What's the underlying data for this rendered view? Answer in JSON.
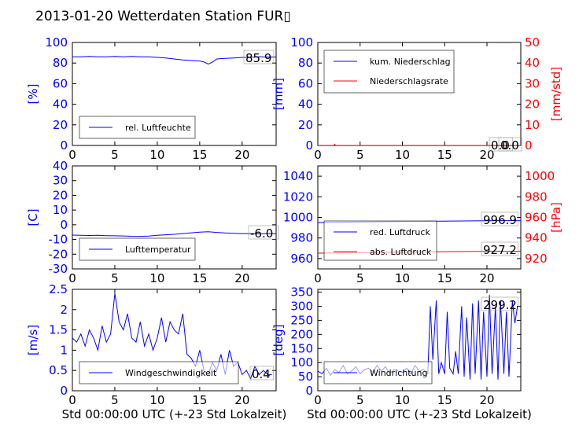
{
  "figure": {
    "title": "2013-01-20 Wetterdaten Station FUR▯"
  },
  "chart_data": [
    {
      "id": "humidity",
      "type": "line",
      "xlabel": "",
      "ylabel_left": "[%]",
      "ylabel_right": "",
      "xlim": [
        0,
        24
      ],
      "ylim": [
        0,
        100
      ],
      "ylim_right": null,
      "xticks": [
        0,
        5,
        10,
        15,
        20
      ],
      "yticks": [
        0,
        20,
        40,
        60,
        80,
        100
      ],
      "yticks_right": [],
      "legend_position": "lower-left",
      "series": [
        {
          "name": "rel. Luftfeuchte",
          "axis": "left",
          "color": "#0000ff",
          "x": [
            0,
            1,
            2,
            3,
            4,
            5,
            6,
            7,
            8,
            9,
            10,
            11,
            12,
            13,
            14,
            15,
            15.5,
            16,
            16.5,
            17,
            18,
            19,
            20,
            21,
            22,
            23,
            24
          ],
          "y": [
            86,
            86,
            86.5,
            86,
            86,
            86.5,
            86,
            86.5,
            86,
            86,
            85.5,
            85,
            84,
            83,
            82.5,
            82,
            81,
            79,
            81,
            84,
            84.5,
            85,
            85.5,
            85.5,
            86,
            85.9,
            85.9
          ]
        }
      ],
      "current_value": "85.9"
    },
    {
      "id": "precip",
      "type": "line",
      "xlabel": "",
      "ylabel_left": "[mm]",
      "ylabel_right": "[mm/std]",
      "xlim": [
        0,
        24
      ],
      "ylim": [
        0,
        100
      ],
      "ylim_right": [
        0,
        50
      ],
      "xticks": [
        0,
        5,
        10,
        15,
        20
      ],
      "yticks": [
        0,
        20,
        40,
        60,
        80,
        100
      ],
      "yticks_right": [
        0,
        10,
        20,
        30,
        40,
        50
      ],
      "legend_position": "upper-left",
      "series": [
        {
          "name": "kum. Niederschlag",
          "axis": "left",
          "color": "#0000ff",
          "x": [
            0,
            24
          ],
          "y": [
            0,
            0
          ]
        },
        {
          "name": "Niederschlagsrate",
          "axis": "right",
          "color": "#ff0000",
          "x": [
            0,
            1.9,
            2,
            2.1,
            24
          ],
          "y": [
            0,
            0,
            0.6,
            0,
            0
          ]
        }
      ],
      "current_value": "0.0",
      "current_value_right": "0.0"
    },
    {
      "id": "temperature",
      "type": "line",
      "xlabel": "",
      "ylabel_left": "[C]",
      "ylabel_right": "",
      "xlim": [
        0,
        24
      ],
      "ylim": [
        -30,
        40
      ],
      "ylim_right": null,
      "xticks": [
        0,
        5,
        10,
        15,
        20
      ],
      "yticks": [
        -30,
        -20,
        -10,
        0,
        10,
        20,
        30,
        40
      ],
      "yticks_right": [],
      "legend_position": "lower-left",
      "series": [
        {
          "name": "Lufttemperatur",
          "axis": "left",
          "color": "#0000ff",
          "x": [
            0,
            1,
            2,
            3,
            4,
            5,
            6,
            7,
            8,
            9,
            10,
            11,
            12,
            13,
            14,
            15,
            16,
            17,
            18,
            19,
            20,
            21,
            22,
            23,
            24
          ],
          "y": [
            -7,
            -7.2,
            -7.3,
            -7.2,
            -7.4,
            -7.5,
            -7.6,
            -7.8,
            -7.9,
            -7.7,
            -7.2,
            -6.8,
            -6.5,
            -6.0,
            -5.5,
            -5.0,
            -4.8,
            -5.2,
            -5.6,
            -5.8,
            -6.0,
            -6.0,
            -6.1,
            -6.0,
            -6.0
          ]
        }
      ],
      "current_value": "-6.0"
    },
    {
      "id": "pressure",
      "type": "line",
      "xlabel": "",
      "ylabel_left": "",
      "ylabel_right": "[hPa]",
      "xlim": [
        0,
        24
      ],
      "ylim": [
        950,
        1050
      ],
      "ylim_right": [
        910,
        1010
      ],
      "xticks": [
        0,
        5,
        10,
        15,
        20
      ],
      "yticks": [
        960,
        980,
        1000,
        1020,
        1040
      ],
      "yticks_right": [
        920,
        940,
        960,
        980,
        1000
      ],
      "legend_position": "lower-left",
      "series": [
        {
          "name": "red. Luftdruck",
          "axis": "left",
          "color": "#0000ff",
          "x": [
            0,
            4,
            8,
            12,
            16,
            20,
            24
          ],
          "y": [
            995.0,
            995.4,
            995.8,
            996.2,
            996.5,
            996.8,
            996.9
          ]
        },
        {
          "name": "abs. Luftdruck",
          "axis": "right",
          "color": "#ff0000",
          "x": [
            0,
            4,
            8,
            12,
            16,
            20,
            24
          ],
          "y": [
            925.3,
            925.7,
            926.1,
            926.5,
            926.8,
            927.1,
            927.2
          ]
        }
      ],
      "current_value": "996.9",
      "current_value_right": "927.2"
    },
    {
      "id": "wind_speed",
      "type": "line",
      "xlabel": "Std 00:00:00 UTC (+-23 Std Lokalzeit)",
      "ylabel_left": "[m/s]",
      "ylabel_right": "",
      "xlim": [
        0,
        24
      ],
      "ylim": [
        0,
        2.5
      ],
      "ylim_right": null,
      "xticks": [
        0,
        5,
        10,
        15,
        20
      ],
      "yticks": [
        0.0,
        0.5,
        1.0,
        1.5,
        2.0,
        2.5
      ],
      "yticks_right": [],
      "legend_position": "lower-left",
      "series": [
        {
          "name": "Windgeschwindigkeit",
          "axis": "left",
          "color": "#0000ff",
          "x": [
            0,
            0.5,
            1,
            1.5,
            2,
            2.5,
            3,
            3.5,
            4,
            4.5,
            5,
            5.5,
            6,
            6.5,
            7,
            7.5,
            8,
            8.5,
            9,
            9.5,
            10,
            10.5,
            11,
            11.5,
            12,
            12.5,
            13,
            13.5,
            14,
            14.5,
            15,
            15.5,
            16,
            16.5,
            17,
            17.5,
            18,
            18.5,
            19,
            19.5,
            20,
            20.5,
            21,
            21.5,
            22,
            22.5,
            23,
            23.5
          ],
          "y": [
            1.3,
            1.2,
            1.4,
            1.1,
            1.5,
            1.3,
            1.0,
            1.6,
            1.2,
            1.4,
            2.4,
            1.7,
            1.5,
            1.9,
            1.3,
            1.2,
            1.7,
            1.1,
            1.4,
            1.0,
            1.3,
            1.8,
            1.2,
            1.7,
            1.5,
            1.4,
            1.9,
            0.9,
            0.8,
            0.6,
            1.0,
            0.5,
            0.4,
            0.7,
            0.5,
            0.9,
            0.4,
            1.0,
            0.6,
            0.7,
            0.4,
            0.5,
            0.3,
            0.6,
            0.4,
            0.5,
            0.4,
            0.4
          ]
        }
      ],
      "current_value": "0.4"
    },
    {
      "id": "wind_dir",
      "type": "line",
      "xlabel": "Std 00:00:00 UTC (+-23 Std Lokalzeit)",
      "ylabel_left": "[deg]",
      "ylabel_right": "",
      "xlim": [
        0,
        24
      ],
      "ylim": [
        0,
        360
      ],
      "ylim_right": null,
      "xticks": [
        0,
        5,
        10,
        15,
        20
      ],
      "yticks": [
        0,
        50,
        100,
        150,
        200,
        250,
        300,
        350
      ],
      "yticks_right": [],
      "legend_position": "lower-left",
      "series": [
        {
          "name": "Windrichtung",
          "axis": "left",
          "color": "#0000ff",
          "x": [
            0,
            0.5,
            1,
            1.5,
            2,
            2.5,
            3,
            3.5,
            4,
            4.5,
            5,
            5.5,
            6,
            6.5,
            7,
            7.5,
            8,
            8.5,
            9,
            9.5,
            10,
            10.5,
            11,
            11.5,
            12,
            12.5,
            13,
            13.3,
            13.6,
            14,
            14.3,
            14.6,
            15,
            15.3,
            15.6,
            16,
            16.3,
            16.6,
            17,
            17.3,
            17.6,
            18,
            18.3,
            18.6,
            19,
            19.3,
            19.6,
            20,
            20.3,
            20.6,
            21,
            21.3,
            21.6,
            22,
            22.3,
            22.6,
            23,
            23.3,
            23.6
          ],
          "y": [
            70,
            60,
            80,
            55,
            75,
            65,
            90,
            60,
            70,
            85,
            60,
            75,
            80,
            65,
            90,
            70,
            85,
            60,
            75,
            70,
            65,
            80,
            60,
            90,
            70,
            75,
            60,
            300,
            110,
            320,
            60,
            100,
            60,
            280,
            80,
            60,
            140,
            60,
            300,
            50,
            260,
            40,
            310,
            60,
            320,
            40,
            280,
            50,
            340,
            60,
            300,
            40,
            320,
            60,
            280,
            50,
            320,
            240,
            299
          ]
        }
      ],
      "current_value": "299.2"
    }
  ]
}
